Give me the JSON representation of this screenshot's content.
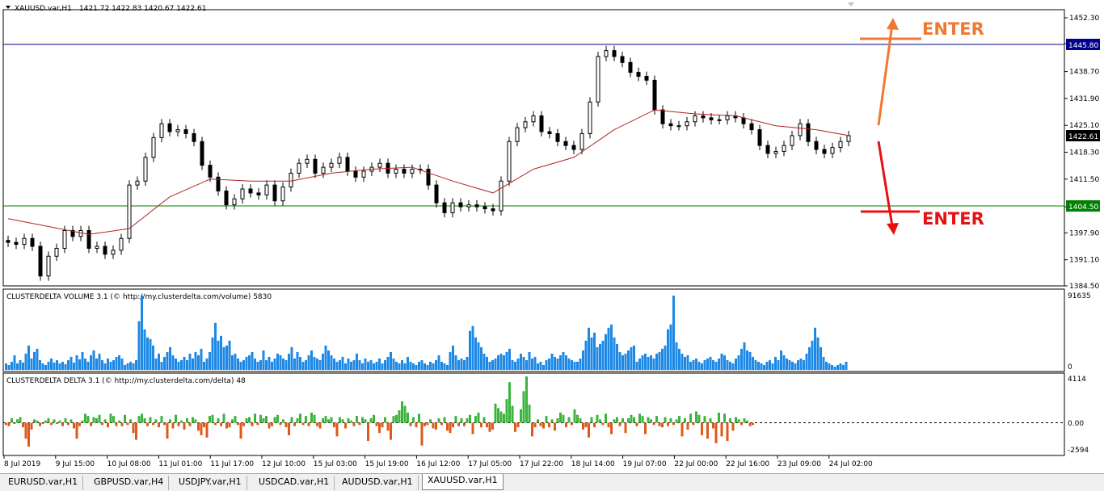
{
  "window": {
    "symbol_title": "XAUUSD.var,H1",
    "ohlc": "1421.72 1422.83 1420.67 1422.61"
  },
  "price_axis": {
    "ticks": [
      "1452.30",
      "1445.80",
      "1438.70",
      "1431.90",
      "1425.10",
      "1418.30",
      "1411.50",
      "1404.50",
      "1397.90",
      "1391.10",
      "1384.50"
    ],
    "current_price": "1422.61",
    "level_upper": "1445.80",
    "level_lower": "1404.50"
  },
  "annotations": {
    "enter_upper": "ENTER",
    "enter_lower": "ENTER",
    "up_color": "#f07830",
    "down_color": "#e81010"
  },
  "volume_panel": {
    "title": "CLUSTERDELTA VOLUME 3.1 (© http://my.clusterdelta.com/volume) 5830",
    "max_label": "91635",
    "min_label": "0",
    "bar_color": "#1e88e5"
  },
  "delta_panel": {
    "title": "CLUSTERDELTA DELTA 3.1 (© http://my.clusterdelta.com/delta) 48",
    "max_label": "4114",
    "zero_label": "0.00",
    "min_label": "-2594",
    "pos_color": "#3cb43c",
    "neg_color": "#e0581a"
  },
  "time_axis": {
    "labels": [
      "8 Jul 2019",
      "9 Jul 15:00",
      "10 Jul 08:00",
      "11 Jul 01:00",
      "11 Jul 17:00",
      "12 Jul 10:00",
      "15 Jul 03:00",
      "15 Jul 19:00",
      "16 Jul 12:00",
      "17 Jul 05:00",
      "17 Jul 22:00",
      "18 Jul 14:00",
      "19 Jul 07:00",
      "22 Jul 00:00",
      "22 Jul 16:00",
      "23 Jul 09:00",
      "24 Jul 02:00"
    ]
  },
  "tabs": [
    {
      "label": "EURUSD.var,H1",
      "active": false
    },
    {
      "label": "GBPUSD.var,H4",
      "active": false
    },
    {
      "label": "USDJPY.var,H1",
      "active": false
    },
    {
      "label": "USDCAD.var,H1",
      "active": false
    },
    {
      "label": "AUDUSD.var,H1",
      "active": false
    },
    {
      "label": "XAUUSD.var,H1",
      "active": true
    }
  ],
  "chart_data": [
    {
      "type": "candlestick",
      "title": "XAUUSD.var,H1",
      "ylim": [
        1384.5,
        1452.3
      ],
      "series": [
        {
          "name": "",
          "points": [
            [
              0,
              1395.5
            ],
            [
              10,
              1395.0
            ],
            [
              20,
              1396.5
            ],
            [
              30,
              1394.5
            ],
            [
              40,
              1387.0
            ],
            [
              50,
              1392.0
            ],
            [
              60,
              1394.0
            ],
            [
              70,
              1398.5
            ],
            [
              80,
              1397.0
            ],
            [
              90,
              1398.5
            ],
            [
              100,
              1394.0
            ],
            [
              110,
              1394.5
            ],
            [
              120,
              1392.5
            ],
            [
              130,
              1393.5
            ],
            [
              140,
              1396.5
            ],
            [
              150,
              1410.0
            ],
            [
              160,
              1411.0
            ],
            [
              170,
              1417.0
            ],
            [
              180,
              1422.0
            ],
            [
              190,
              1425.5
            ],
            [
              200,
              1423.5
            ],
            [
              210,
              1424.0
            ],
            [
              220,
              1423.0
            ],
            [
              230,
              1421.0
            ],
            [
              240,
              1415.0
            ],
            [
              250,
              1412.0
            ],
            [
              260,
              1408.5
            ],
            [
              270,
              1405.0
            ],
            [
              280,
              1406.5
            ],
            [
              290,
              1409.0
            ],
            [
              300,
              1408.0
            ],
            [
              310,
              1407.5
            ],
            [
              320,
              1410.0
            ],
            [
              330,
              1406.0
            ],
            [
              340,
              1409.5
            ],
            [
              350,
              1413.0
            ],
            [
              360,
              1415.5
            ],
            [
              370,
              1416.5
            ],
            [
              380,
              1413.0
            ],
            [
              390,
              1414.5
            ],
            [
              400,
              1415.5
            ],
            [
              410,
              1417.0
            ],
            [
              420,
              1413.5
            ],
            [
              430,
              1412.0
            ],
            [
              440,
              1413.5
            ],
            [
              450,
              1414.5
            ],
            [
              460,
              1415.5
            ],
            [
              470,
              1413.0
            ],
            [
              480,
              1414.0
            ],
            [
              490,
              1413.0
            ],
            [
              500,
              1414.0
            ],
            [
              510,
              1414.0
            ],
            [
              520,
              1410.0
            ],
            [
              530,
              1405.5
            ],
            [
              540,
              1403.0
            ],
            [
              550,
              1405.5
            ],
            [
              560,
              1404.5
            ],
            [
              570,
              1405.0
            ],
            [
              580,
              1404.5
            ],
            [
              590,
              1404.0
            ],
            [
              600,
              1403.5
            ],
            [
              610,
              1411.0
            ],
            [
              620,
              1421.0
            ],
            [
              630,
              1424.5
            ],
            [
              640,
              1426.0
            ],
            [
              650,
              1427.5
            ],
            [
              660,
              1423.5
            ],
            [
              670,
              1423.0
            ],
            [
              680,
              1421.0
            ],
            [
              690,
              1420.0
            ],
            [
              700,
              1419.0
            ],
            [
              710,
              1423.0
            ],
            [
              720,
              1431.0
            ],
            [
              730,
              1442.5
            ],
            [
              740,
              1444.0
            ],
            [
              750,
              1442.5
            ],
            [
              760,
              1441.0
            ],
            [
              770,
              1438.5
            ],
            [
              780,
              1437.5
            ],
            [
              790,
              1436.5
            ],
            [
              800,
              1429.0
            ],
            [
              810,
              1425.5
            ],
            [
              820,
              1425.0
            ],
            [
              830,
              1425.0
            ],
            [
              840,
              1426.0
            ],
            [
              850,
              1427.5
            ],
            [
              860,
              1427.0
            ],
            [
              870,
              1426.5
            ],
            [
              880,
              1426.5
            ],
            [
              890,
              1427.5
            ],
            [
              900,
              1427.0
            ],
            [
              910,
              1425.5
            ],
            [
              920,
              1424.0
            ],
            [
              930,
              1420.0
            ],
            [
              940,
              1418.0
            ],
            [
              950,
              1418.5
            ],
            [
              960,
              1420.0
            ],
            [
              970,
              1422.5
            ],
            [
              980,
              1425.5
            ],
            [
              990,
              1421.0
            ],
            [
              1000,
              1419.0
            ],
            [
              1010,
              1418.0
            ],
            [
              1020,
              1419.5
            ],
            [
              1030,
              1421.0
            ],
            [
              1040,
              1422.5
            ]
          ]
        },
        {
          "name": "",
          "points": [
            [
              0,
              1401.5
            ],
            [
              100,
              1397.5
            ],
            [
              150,
              1399.0
            ],
            [
              200,
              1407.0
            ],
            [
              250,
              1411.5
            ],
            [
              300,
              1411.0
            ],
            [
              350,
              1411.0
            ],
            [
              400,
              1413.0
            ],
            [
              450,
              1414.0
            ],
            [
              500,
              1414.5
            ],
            [
              550,
              1411.0
            ],
            [
              600,
              1408.0
            ],
            [
              650,
              1414.0
            ],
            [
              700,
              1417.0
            ],
            [
              750,
              1424.0
            ],
            [
              800,
              1429.0
            ],
            [
              850,
              1428.0
            ],
            [
              900,
              1427.5
            ],
            [
              950,
              1425.0
            ],
            [
              1000,
              1424.0
            ],
            [
              1040,
              1422.5
            ]
          ]
        }
      ]
    },
    {
      "type": "bar",
      "title": "CLUSTERDELTA VOLUME 3.1 (© http://my.clusterdelta.com/volume) 5830",
      "ylim": [
        0,
        91635
      ],
      "values": [
        8000,
        6000,
        10000,
        18000,
        8000,
        12000,
        9000,
        20000,
        30000,
        14000,
        22000,
        26000,
        12000,
        8000,
        6000,
        10000,
        14000,
        9000,
        12000,
        8000,
        10000,
        7000,
        12000,
        16000,
        9000,
        18000,
        13000,
        22000,
        14000,
        10000,
        18000,
        24000,
        14000,
        20000,
        12000,
        8000,
        14000,
        10000,
        12000,
        16000,
        18000,
        14000,
        6000,
        8000,
        10000,
        8000,
        12000,
        60000,
        92000,
        50000,
        40000,
        38000,
        30000,
        14000,
        20000,
        10000,
        16000,
        22000,
        28000,
        18000,
        14000,
        10000,
        12000,
        16000,
        12000,
        20000,
        14000,
        22000,
        18000,
        26000,
        10000,
        14000,
        22000,
        40000,
        58000,
        36000,
        42000,
        28000,
        30000,
        36000,
        18000,
        20000,
        14000,
        10000,
        12000,
        16000,
        18000,
        22000,
        14000,
        10000,
        12000,
        24000,
        12000,
        16000,
        10000,
        14000,
        20000,
        18000,
        14000,
        12000,
        20000,
        28000,
        14000,
        22000,
        16000,
        10000,
        12000,
        18000,
        24000,
        16000,
        14000,
        12000,
        20000,
        30000,
        24000,
        18000,
        14000,
        10000,
        12000,
        16000,
        8000,
        14000,
        10000,
        12000,
        20000,
        12000,
        8000,
        14000,
        10000,
        12000,
        8000,
        10000,
        14000,
        8000,
        12000,
        16000,
        22000,
        14000,
        10000,
        8000,
        12000,
        8000,
        16000,
        10000,
        8000,
        6000,
        10000,
        12000,
        8000,
        6000,
        10000,
        8000,
        12000,
        18000,
        10000,
        8000,
        6000,
        22000,
        30000,
        18000,
        12000,
        14000,
        12000,
        16000,
        48000,
        54000,
        40000,
        34000,
        28000,
        20000,
        16000,
        10000,
        12000,
        14000,
        18000,
        20000,
        18000,
        22000,
        26000,
        12000,
        10000,
        14000,
        20000,
        16000,
        12000,
        22000,
        14000,
        16000,
        8000,
        10000,
        6000,
        12000,
        14000,
        20000,
        16000,
        14000,
        18000,
        22000,
        18000,
        14000,
        12000,
        10000,
        10000,
        14000,
        24000,
        36000,
        52000,
        40000,
        46000,
        28000,
        32000,
        36000,
        44000,
        52000,
        56000,
        40000,
        32000,
        22000,
        18000,
        20000,
        24000,
        28000,
        30000,
        10000,
        14000,
        18000,
        20000,
        16000,
        18000,
        14000,
        20000,
        22000,
        26000,
        30000,
        50000,
        56000,
        94000,
        34000,
        26000,
        20000,
        16000,
        18000,
        10000,
        12000,
        14000,
        10000,
        8000,
        12000,
        14000,
        16000,
        12000,
        10000,
        14000,
        20000,
        18000,
        12000,
        10000,
        8000,
        14000,
        18000,
        26000,
        34000,
        24000,
        22000,
        16000,
        12000,
        10000,
        8000,
        6000,
        10000,
        12000,
        8000,
        16000,
        12000,
        24000,
        18000,
        14000,
        12000,
        10000,
        8000,
        12000,
        14000,
        12000,
        20000,
        28000,
        36000,
        52000,
        40000,
        28000,
        16000,
        10000,
        8000,
        6000,
        4000,
        6000,
        8000,
        6000,
        10000
      ]
    },
    {
      "type": "bar",
      "title": "CLUSTERDELTA DELTA 3.1 (© http://my.clusterdelta.com/delta) 48",
      "ylim": [
        -2594,
        4114
      ],
      "values": [
        -200,
        -300,
        400,
        -100,
        300,
        500,
        -400,
        -1400,
        -2100,
        -600,
        300,
        200,
        -300,
        -100,
        200,
        400,
        -200,
        300,
        -100,
        200,
        -300,
        400,
        -200,
        300,
        -500,
        -1400,
        -300,
        200,
        800,
        600,
        -300,
        500,
        400,
        700,
        -200,
        300,
        -400,
        800,
        600,
        -300,
        200,
        -300,
        700,
        -200,
        300,
        -900,
        -1500,
        600,
        800,
        400,
        -300,
        500,
        -200,
        300,
        -400,
        600,
        -200,
        -1400,
        300,
        -500,
        700,
        -300,
        200,
        -600,
        400,
        -300,
        500,
        300,
        -700,
        -1100,
        -400,
        -1300,
        600,
        700,
        -200,
        400,
        -300,
        800,
        -500,
        -400,
        300,
        600,
        -200,
        -1400,
        -300,
        400,
        500,
        -300,
        800,
        -200,
        700,
        400,
        600,
        -500,
        -300,
        500,
        700,
        -200,
        300,
        -400,
        -1100,
        500,
        -300,
        400,
        800,
        -200,
        600,
        -300,
        900,
        700,
        -300,
        -500,
        400,
        600,
        300,
        500,
        -400,
        -1200,
        500,
        300,
        -500,
        400,
        200,
        -300,
        600,
        -200,
        500,
        300,
        -1600,
        400,
        700,
        -300,
        -900,
        -400,
        500,
        -700,
        -1500,
        600,
        700,
        1100,
        1900,
        1500,
        900,
        -300,
        500,
        -400,
        800,
        -2000,
        -300,
        -200,
        300,
        -500,
        -600,
        400,
        -200,
        500,
        -700,
        -900,
        -400,
        600,
        -300,
        400,
        -300,
        400,
        700,
        -1000,
        600,
        900,
        -400,
        500,
        -400,
        -800,
        -600,
        1700,
        1300,
        1000,
        800,
        2100,
        3600,
        1500,
        -800,
        -400,
        1200,
        2800,
        4100,
        1600,
        -1200,
        -400,
        300,
        -300,
        -500,
        600,
        -400,
        300,
        -700,
        400,
        900,
        700,
        -400,
        500,
        -200,
        1200,
        700,
        400,
        -600,
        -400,
        -1300,
        500,
        -400,
        700,
        300,
        -200,
        800,
        -400,
        -1000,
        300,
        500,
        -300,
        400,
        -900,
        400,
        700,
        500,
        -300,
        800,
        600,
        -1000,
        500,
        300,
        -200,
        600,
        -300,
        -400,
        500,
        -300,
        400,
        -200,
        300,
        600,
        -1200,
        400,
        -600,
        800,
        -200,
        1000,
        700,
        -1100,
        600,
        -1400,
        400,
        -500,
        -1800,
        900,
        -1200,
        800,
        -1600,
        400,
        -700,
        500,
        300,
        -200,
        400,
        200,
        -300,
        -200
      ]
    }
  ]
}
